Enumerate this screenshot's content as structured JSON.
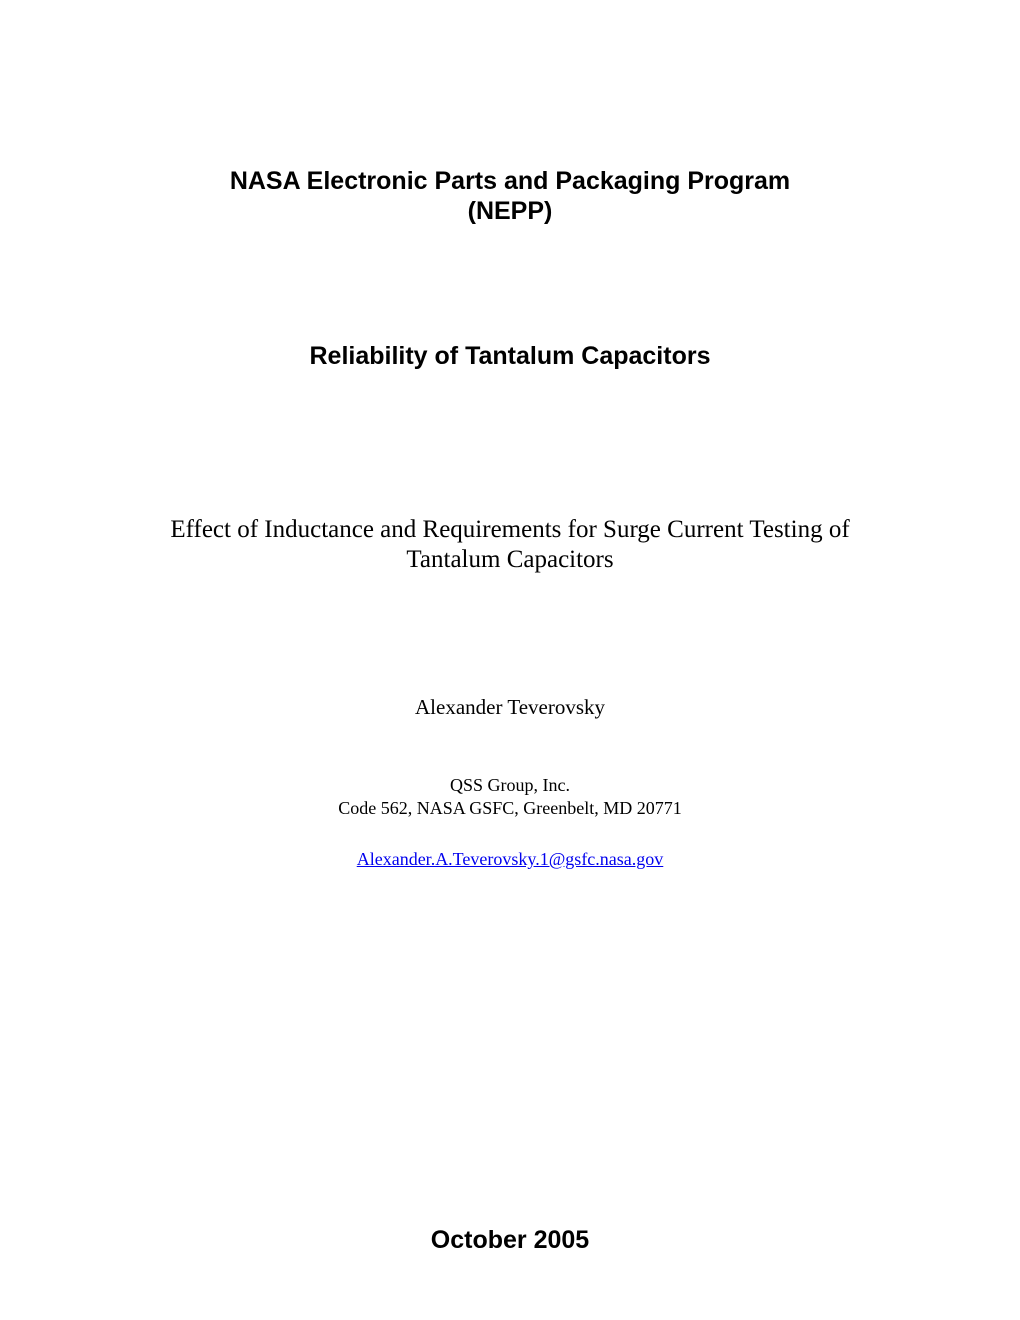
{
  "program": {
    "title_line1": "NASA Electronic Parts and Packaging Program",
    "title_line2": "(NEPP)"
  },
  "section_title": "Reliability of Tantalum Capacitors",
  "subtitle_line1": "Effect of Inductance and Requirements for Surge Current Testing of",
  "subtitle_line2": "Tantalum Capacitors",
  "author": "Alexander Teverovsky",
  "affiliation": {
    "org": "QSS Group, Inc.",
    "address": "Code 562, NASA GSFC, Greenbelt, MD 20771"
  },
  "email": "Alexander.A.Teverovsky.1@gsfc.nasa.gov",
  "date": "October 2005",
  "colors": {
    "background": "#ffffff",
    "text": "#000000",
    "link": "#0000ee"
  }
}
